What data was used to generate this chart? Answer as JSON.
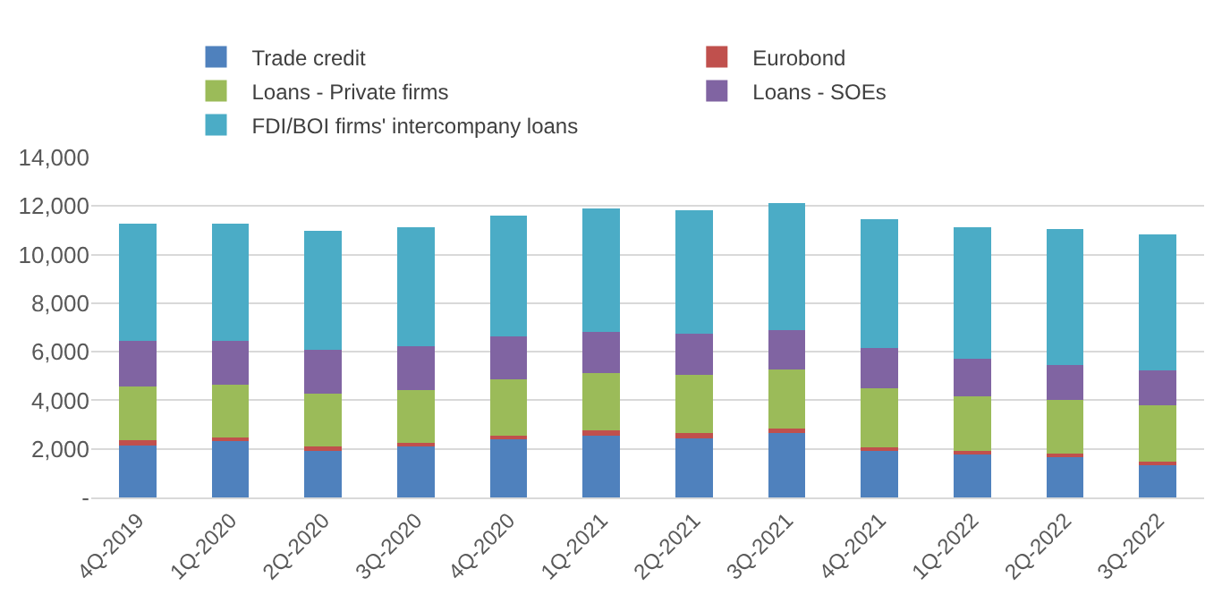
{
  "chart_data": {
    "type": "bar",
    "stacked": true,
    "categories": [
      "4Q-2019",
      "1Q-2020",
      "2Q-2020",
      "3Q-2020",
      "4Q-2020",
      "1Q-2021",
      "2Q-2021",
      "3Q-2021",
      "4Q-2021",
      "1Q-2022",
      "2Q-2022",
      "3Q-2022"
    ],
    "series": [
      {
        "name": "Trade credit",
        "color": "#4f81bd",
        "values": [
          2140,
          2320,
          1920,
          2090,
          2390,
          2550,
          2440,
          2700,
          1920,
          1790,
          1640,
          1310
        ]
      },
      {
        "name": "Eurobond",
        "color": "#c0504d",
        "values": [
          230,
          150,
          170,
          150,
          160,
          200,
          230,
          120,
          150,
          130,
          150,
          150
        ]
      },
      {
        "name": "Loans - Private firms",
        "color": "#9bbb59",
        "values": [
          2190,
          2190,
          2170,
          2170,
          2310,
          2370,
          2370,
          2450,
          2440,
          2260,
          2240,
          2350
        ]
      },
      {
        "name": "Loans - SOEs",
        "color": "#8064a2",
        "values": [
          1890,
          1790,
          1810,
          1810,
          1770,
          1710,
          1710,
          1630,
          1640,
          1520,
          1440,
          1430
        ]
      },
      {
        "name": "FDI/BOI firms' intercompany loans",
        "color": "#4bacc6",
        "values": [
          4840,
          4840,
          4920,
          4920,
          4960,
          5060,
          5070,
          5220,
          5290,
          5440,
          5590,
          5600
        ]
      }
    ],
    "ylim": [
      0,
      14000
    ],
    "yticks": [
      {
        "value": 0,
        "label": "-"
      },
      {
        "value": 2000,
        "label": "2,000"
      },
      {
        "value": 4000,
        "label": "4,000"
      },
      {
        "value": 6000,
        "label": "6,000"
      },
      {
        "value": 8000,
        "label": "8,000"
      },
      {
        "value": 10000,
        "label": "10,000"
      },
      {
        "value": 12000,
        "label": "12,000"
      },
      {
        "value": 14000,
        "label": "14,000"
      }
    ],
    "grid": "y",
    "legend": "top"
  }
}
